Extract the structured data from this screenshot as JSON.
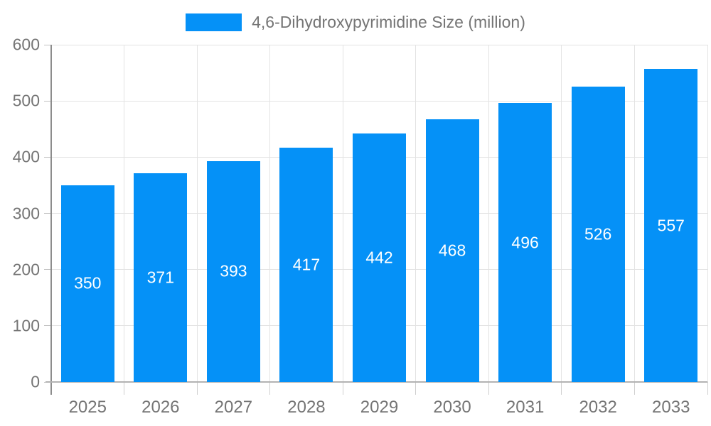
{
  "chart_data": {
    "type": "bar",
    "title": "",
    "legend": {
      "label": "4,6-Dihydroxypyrimidine Size (million)",
      "position": "top"
    },
    "categories": [
      "2025",
      "2026",
      "2027",
      "2028",
      "2029",
      "2030",
      "2031",
      "2032",
      "2033"
    ],
    "series": [
      {
        "name": "4,6-Dihydroxypyrimidine Size (million)",
        "values": [
          350,
          371,
          393,
          417,
          442,
          468,
          496,
          526,
          557
        ]
      }
    ],
    "value_labels_shown": true,
    "xlabel": "",
    "ylabel": "",
    "ylim": [
      0,
      600
    ],
    "y_ticks": [
      0,
      100,
      200,
      300,
      400,
      500,
      600
    ],
    "grid": true,
    "colors": {
      "bar": "#0591f7",
      "value_label": "#ffffff",
      "axis_text": "#757575",
      "gridline": "#e3e3e3",
      "y_axis_line": "#8c8c8c",
      "x_axis_line": "#b3b3b3"
    }
  }
}
